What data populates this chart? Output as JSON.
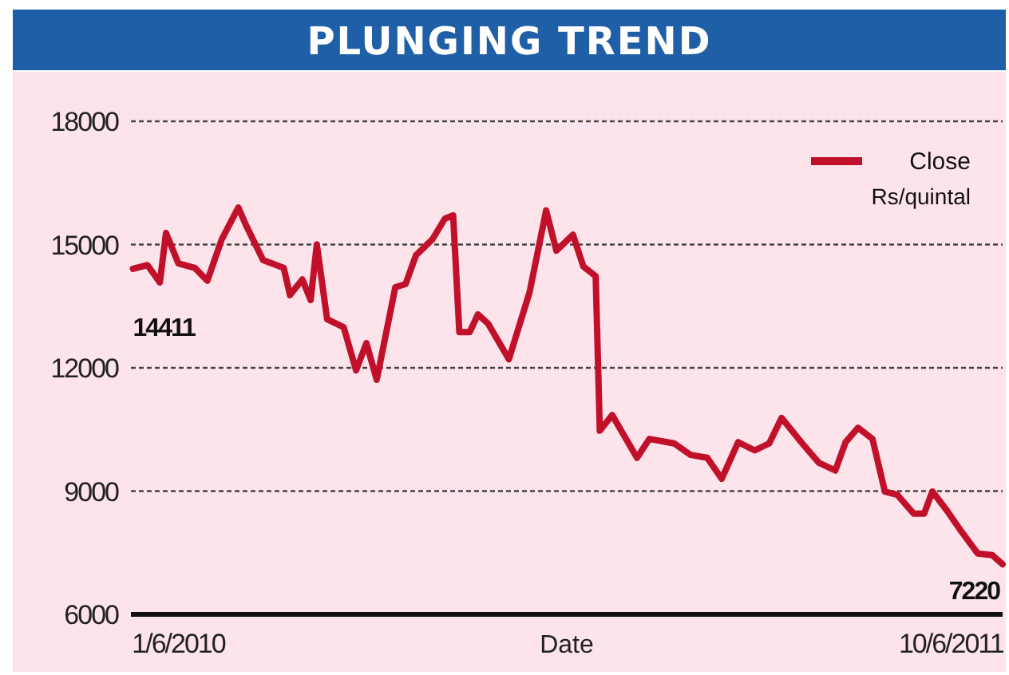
{
  "chart_data": {
    "type": "line",
    "title": "PLUNGING TREND",
    "xlabel": "Date",
    "xlim": [
      "2010-05-09",
      "2011-07-05"
    ],
    "xticks": [
      {
        "value": "2010-06-01",
        "label": "1/6/2010"
      },
      {
        "value": "2011-06-10",
        "label": "10/6/2011"
      }
    ],
    "ylim": [
      6000,
      18000
    ],
    "yticks": [
      6000,
      9000,
      12000,
      15000,
      18000
    ],
    "grid": "y",
    "legend": "top right",
    "line_style": "solid",
    "annotations": [
      {
        "text": "14411",
        "x": "2010-05-10",
        "y": 14411
      },
      {
        "text": "7220",
        "x": "2011-07-05",
        "y": 7220
      },
      "Rs/quintal"
    ],
    "series": [
      {
        "name": "Close",
        "color": "#c0102a",
        "x": [
          "2010-05-10",
          "2010-05-17",
          "2010-05-23",
          "2010-05-26",
          "2010-06-01",
          "2010-06-09",
          "2010-06-15",
          "2010-06-22",
          "2010-06-30",
          "2010-07-04",
          "2010-07-12",
          "2010-07-22",
          "2010-07-25",
          "2010-07-31",
          "2010-08-04",
          "2010-08-07",
          "2010-08-12",
          "2010-08-20",
          "2010-08-26",
          "2010-08-31",
          "2010-09-05",
          "2010-09-14",
          "2010-09-19",
          "2010-09-24",
          "2010-10-02",
          "2010-10-08",
          "2010-10-12",
          "2010-10-15",
          "2010-10-20",
          "2010-10-24",
          "2010-10-29",
          "2010-11-08",
          "2010-11-18",
          "2010-11-26",
          "2010-12-01",
          "2010-12-09",
          "2010-12-14",
          "2010-12-20",
          "2010-12-22",
          "2010-12-28",
          "2011-01-09",
          "2011-01-15",
          "2011-01-27",
          "2011-02-04",
          "2011-02-12",
          "2011-02-19",
          "2011-02-27",
          "2011-03-07",
          "2011-03-14",
          "2011-03-20",
          "2011-03-30",
          "2011-04-07",
          "2011-04-15",
          "2011-04-20",
          "2011-04-26",
          "2011-05-03",
          "2011-05-09",
          "2011-05-15",
          "2011-05-23",
          "2011-05-28",
          "2011-06-01",
          "2011-06-08",
          "2011-06-15",
          "2011-06-23",
          "2011-06-30",
          "2011-07-05"
        ],
        "values": [
          14411,
          14500,
          14080,
          15280,
          14540,
          14430,
          14120,
          15130,
          15900,
          15440,
          14620,
          14430,
          13770,
          14150,
          13650,
          15000,
          13180,
          12990,
          11940,
          12600,
          11710,
          13960,
          14040,
          14740,
          15130,
          15630,
          15710,
          12870,
          12870,
          13300,
          13070,
          12210,
          13840,
          15830,
          14850,
          15240,
          14470,
          14230,
          10470,
          10850,
          9810,
          10270,
          10160,
          9880,
          9810,
          9300,
          10190,
          9990,
          10160,
          10780,
          10160,
          9690,
          9500,
          10190,
          10540,
          10270,
          8990,
          8910,
          8450,
          8450,
          8990,
          8530,
          8020,
          7480,
          7440,
          7220
        ]
      }
    ]
  }
}
